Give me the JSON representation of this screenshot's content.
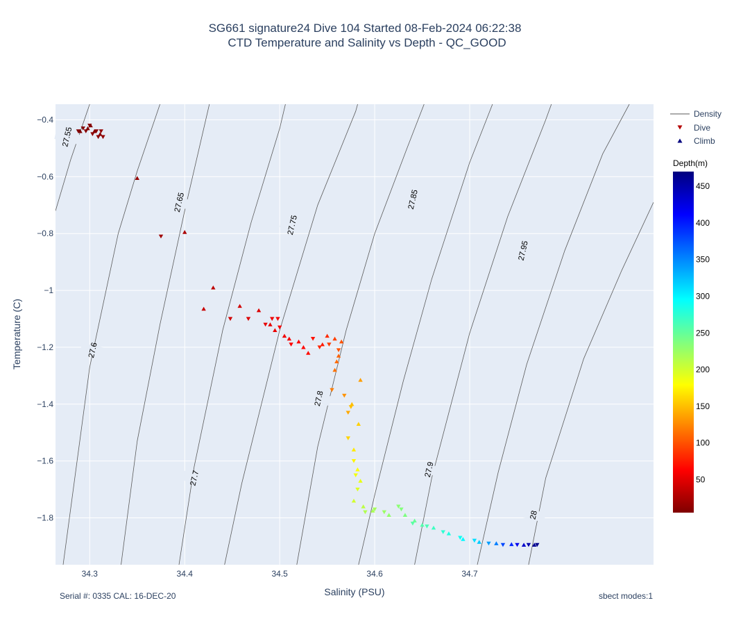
{
  "chart_data": {
    "type": "scatter",
    "title_line1": "SG661 signature24 Dive 104 Started 08-Feb-2024 06:22:38",
    "title_line2": "CTD Temperature and Salinity vs Depth - QC_GOOD",
    "xlabel": "Salinity (PSU)",
    "ylabel": "Temperature (C)",
    "xlim": [
      34.264,
      34.8935
    ],
    "ylim": [
      -1.965,
      -0.345
    ],
    "x_ticks": [
      34.3,
      34.4,
      34.5,
      34.6,
      34.7
    ],
    "x_tick_labels": [
      "34.3",
      "34.4",
      "34.5",
      "34.6",
      "34.7"
    ],
    "y_ticks": [
      -0.4,
      -0.6,
      -0.8,
      -1.0,
      -1.2,
      -1.4,
      -1.6,
      -1.8
    ],
    "y_tick_labels": [
      "−0.4",
      "−0.6",
      "−0.8",
      "−1",
      "−1.2",
      "−1.4",
      "−1.6",
      "−1.8"
    ],
    "grid": true,
    "legend": {
      "position": "top-right",
      "items": [
        {
          "name": "Density",
          "symbol": "line",
          "color": "#5a5a5a"
        },
        {
          "name": "Dive",
          "symbol": "triangle-down",
          "color": "#b40000"
        },
        {
          "name": "Climb",
          "symbol": "triangle-up",
          "color": "#00007f"
        }
      ]
    },
    "colorbar": {
      "title": "Depth(m)",
      "range": [
        5,
        470
      ],
      "colorscale": "jet",
      "ticks": [
        50,
        100,
        150,
        200,
        250,
        300,
        350,
        400,
        450
      ],
      "tick_labels": [
        "50",
        "100",
        "150",
        "200",
        "250",
        "300",
        "350",
        "400",
        "450"
      ]
    },
    "density_contours": [
      {
        "label": "27.55",
        "label_at": [
          34.276,
          -0.46
        ],
        "points": [
          [
            34.264,
            -0.72
          ],
          [
            34.28,
            -0.54
          ],
          [
            34.3,
            -0.345
          ]
        ]
      },
      {
        "label": "27.6",
        "label_at": [
          34.303,
          -1.21
        ],
        "points": [
          [
            34.272,
            -1.965
          ],
          [
            34.3,
            -1.27
          ],
          [
            34.33,
            -0.8
          ],
          [
            34.35,
            -0.58
          ],
          [
            34.374,
            -0.345
          ]
        ]
      },
      {
        "label": "27.65",
        "label_at": [
          34.394,
          -0.69
        ],
        "points": [
          [
            34.333,
            -1.965
          ],
          [
            34.35,
            -1.53
          ],
          [
            34.374,
            -1.12
          ],
          [
            34.4,
            -0.72
          ],
          [
            34.426,
            -0.345
          ]
        ]
      },
      {
        "label": "27.7",
        "label_at": [
          34.41,
          -1.66
        ],
        "points": [
          [
            34.394,
            -1.965
          ],
          [
            34.41,
            -1.62
          ],
          [
            34.44,
            -1.14
          ],
          [
            34.47,
            -0.76
          ],
          [
            34.5,
            -0.43
          ],
          [
            34.506,
            -0.345
          ]
        ]
      },
      {
        "label": "27.75",
        "label_at": [
          34.513,
          -0.77
        ],
        "points": [
          [
            34.442,
            -1.965
          ],
          [
            34.46,
            -1.68
          ],
          [
            34.5,
            -1.14
          ],
          [
            34.54,
            -0.7
          ],
          [
            34.58,
            -0.37
          ],
          [
            34.582,
            -0.345
          ]
        ]
      },
      {
        "label": "27.8",
        "label_at": [
          34.541,
          -1.38
        ],
        "points": [
          [
            34.518,
            -1.965
          ],
          [
            34.54,
            -1.55
          ],
          [
            34.57,
            -1.14
          ],
          [
            34.6,
            -0.8
          ],
          [
            34.634,
            -0.5
          ],
          [
            34.652,
            -0.345
          ]
        ]
      },
      {
        "label": "27.85",
        "label_at": [
          34.64,
          -0.68
        ],
        "points": [
          [
            34.583,
            -1.965
          ],
          [
            34.6,
            -1.72
          ],
          [
            34.63,
            -1.32
          ],
          [
            34.66,
            -0.96
          ],
          [
            34.7,
            -0.55
          ],
          [
            34.724,
            -0.345
          ]
        ]
      },
      {
        "label": "27.9",
        "label_at": [
          34.657,
          -1.63
        ],
        "points": [
          [
            34.642,
            -1.965
          ],
          [
            34.66,
            -1.66
          ],
          [
            34.7,
            -1.15
          ],
          [
            34.74,
            -0.74
          ],
          [
            34.78,
            -0.4
          ],
          [
            34.786,
            -0.345
          ]
        ]
      },
      {
        "label": "27.95",
        "label_at": [
          34.756,
          -0.86
        ],
        "points": [
          [
            34.708,
            -1.965
          ],
          [
            34.73,
            -1.64
          ],
          [
            34.76,
            -1.26
          ],
          [
            34.8,
            -0.86
          ],
          [
            34.84,
            -0.52
          ],
          [
            34.868,
            -0.345
          ]
        ]
      },
      {
        "label": "28",
        "label_at": [
          34.767,
          -1.79
        ],
        "points": [
          [
            34.762,
            -1.965
          ],
          [
            34.78,
            -1.66
          ],
          [
            34.82,
            -1.24
          ],
          [
            34.86,
            -0.93
          ],
          [
            34.8935,
            -0.69
          ]
        ]
      }
    ],
    "series": [
      {
        "name": "Dive",
        "points": [
          {
            "s": 34.288,
            "t": -0.44,
            "d": 6
          },
          {
            "s": 34.293,
            "t": -0.43,
            "d": 7
          },
          {
            "s": 34.296,
            "t": -0.44,
            "d": 8
          },
          {
            "s": 34.3,
            "t": -0.42,
            "d": 9
          },
          {
            "s": 34.303,
            "t": -0.45,
            "d": 10
          },
          {
            "s": 34.307,
            "t": -0.44,
            "d": 11
          },
          {
            "s": 34.309,
            "t": -0.46,
            "d": 12
          },
          {
            "s": 34.312,
            "t": -0.44,
            "d": 13
          },
          {
            "s": 34.314,
            "t": -0.46,
            "d": 14
          },
          {
            "s": 34.375,
            "t": -0.81,
            "d": 20
          },
          {
            "s": 34.448,
            "t": -1.1,
            "d": 42
          },
          {
            "s": 34.467,
            "t": -1.1,
            "d": 47
          },
          {
            "s": 34.485,
            "t": -1.12,
            "d": 52
          },
          {
            "s": 34.492,
            "t": -1.1,
            "d": 55
          },
          {
            "s": 34.498,
            "t": -1.1,
            "d": 57
          },
          {
            "s": 34.5,
            "t": -1.13,
            "d": 59
          },
          {
            "s": 34.512,
            "t": -1.19,
            "d": 62
          },
          {
            "s": 34.535,
            "t": -1.17,
            "d": 70
          },
          {
            "s": 34.542,
            "t": -1.2,
            "d": 80
          },
          {
            "s": 34.552,
            "t": -1.19,
            "d": 90
          },
          {
            "s": 34.562,
            "t": -1.21,
            "d": 100
          },
          {
            "s": 34.555,
            "t": -1.35,
            "d": 120
          },
          {
            "s": 34.568,
            "t": -1.37,
            "d": 130
          },
          {
            "s": 34.572,
            "t": -1.43,
            "d": 140
          },
          {
            "s": 34.575,
            "t": -1.41,
            "d": 150
          },
          {
            "s": 34.572,
            "t": -1.52,
            "d": 160
          },
          {
            "s": 34.578,
            "t": -1.6,
            "d": 175
          },
          {
            "s": 34.58,
            "t": -1.65,
            "d": 185
          },
          {
            "s": 34.582,
            "t": -1.7,
            "d": 195
          },
          {
            "s": 34.59,
            "t": -1.78,
            "d": 215
          },
          {
            "s": 34.6,
            "t": -1.77,
            "d": 220
          },
          {
            "s": 34.61,
            "t": -1.78,
            "d": 225
          },
          {
            "s": 34.625,
            "t": -1.76,
            "d": 232
          },
          {
            "s": 34.628,
            "t": -1.77,
            "d": 236
          },
          {
            "s": 34.64,
            "t": -1.82,
            "d": 255
          },
          {
            "s": 34.655,
            "t": -1.83,
            "d": 262
          },
          {
            "s": 34.672,
            "t": -1.85,
            "d": 275
          },
          {
            "s": 34.69,
            "t": -1.87,
            "d": 290
          },
          {
            "s": 34.705,
            "t": -1.88,
            "d": 310
          },
          {
            "s": 34.72,
            "t": -1.89,
            "d": 340
          },
          {
            "s": 34.735,
            "t": -1.895,
            "d": 380
          },
          {
            "s": 34.75,
            "t": -1.895,
            "d": 420
          },
          {
            "s": 34.762,
            "t": -1.895,
            "d": 450
          },
          {
            "s": 34.771,
            "t": -1.895,
            "d": 465
          }
        ]
      },
      {
        "name": "Climb",
        "points": [
          {
            "s": 34.29,
            "t": -0.44,
            "d": 5
          },
          {
            "s": 34.298,
            "t": -0.43,
            "d": 6
          },
          {
            "s": 34.301,
            "t": -0.42,
            "d": 7
          },
          {
            "s": 34.305,
            "t": -0.44,
            "d": 8
          },
          {
            "s": 34.311,
            "t": -0.45,
            "d": 9
          },
          {
            "s": 34.35,
            "t": -0.605,
            "d": 15
          },
          {
            "s": 34.4,
            "t": -0.795,
            "d": 25
          },
          {
            "s": 34.43,
            "t": -0.99,
            "d": 33
          },
          {
            "s": 34.42,
            "t": -1.065,
            "d": 38
          },
          {
            "s": 34.458,
            "t": -1.055,
            "d": 42
          },
          {
            "s": 34.478,
            "t": -1.07,
            "d": 47
          },
          {
            "s": 34.49,
            "t": -1.12,
            "d": 52
          },
          {
            "s": 34.495,
            "t": -1.14,
            "d": 54
          },
          {
            "s": 34.505,
            "t": -1.16,
            "d": 57
          },
          {
            "s": 34.51,
            "t": -1.17,
            "d": 59
          },
          {
            "s": 34.52,
            "t": -1.18,
            "d": 62
          },
          {
            "s": 34.525,
            "t": -1.2,
            "d": 65
          },
          {
            "s": 34.53,
            "t": -1.22,
            "d": 68
          },
          {
            "s": 34.545,
            "t": -1.19,
            "d": 75
          },
          {
            "s": 34.55,
            "t": -1.16,
            "d": 82
          },
          {
            "s": 34.558,
            "t": -1.17,
            "d": 92
          },
          {
            "s": 34.565,
            "t": -1.18,
            "d": 100
          },
          {
            "s": 34.562,
            "t": -1.23,
            "d": 108
          },
          {
            "s": 34.56,
            "t": -1.25,
            "d": 112
          },
          {
            "s": 34.558,
            "t": -1.28,
            "d": 115
          },
          {
            "s": 34.585,
            "t": -1.315,
            "d": 135
          },
          {
            "s": 34.576,
            "t": -1.4,
            "d": 150
          },
          {
            "s": 34.583,
            "t": -1.47,
            "d": 158
          },
          {
            "s": 34.578,
            "t": -1.56,
            "d": 170
          },
          {
            "s": 34.582,
            "t": -1.63,
            "d": 180
          },
          {
            "s": 34.585,
            "t": -1.67,
            "d": 190
          },
          {
            "s": 34.578,
            "t": -1.74,
            "d": 200
          },
          {
            "s": 34.588,
            "t": -1.76,
            "d": 210
          },
          {
            "s": 34.598,
            "t": -1.775,
            "d": 218
          },
          {
            "s": 34.615,
            "t": -1.79,
            "d": 228
          },
          {
            "s": 34.632,
            "t": -1.79,
            "d": 238
          },
          {
            "s": 34.642,
            "t": -1.81,
            "d": 248
          },
          {
            "s": 34.65,
            "t": -1.825,
            "d": 258
          },
          {
            "s": 34.662,
            "t": -1.835,
            "d": 268
          },
          {
            "s": 34.678,
            "t": -1.855,
            "d": 282
          },
          {
            "s": 34.693,
            "t": -1.875,
            "d": 298
          },
          {
            "s": 34.71,
            "t": -1.885,
            "d": 320
          },
          {
            "s": 34.728,
            "t": -1.89,
            "d": 355
          },
          {
            "s": 34.744,
            "t": -1.893,
            "d": 395
          },
          {
            "s": 34.757,
            "t": -1.895,
            "d": 435
          },
          {
            "s": 34.768,
            "t": -1.895,
            "d": 460
          }
        ]
      }
    ]
  },
  "footer": {
    "left": "Serial #: 0335  CAL: 16-DEC-20",
    "right": "sbect modes:1"
  }
}
